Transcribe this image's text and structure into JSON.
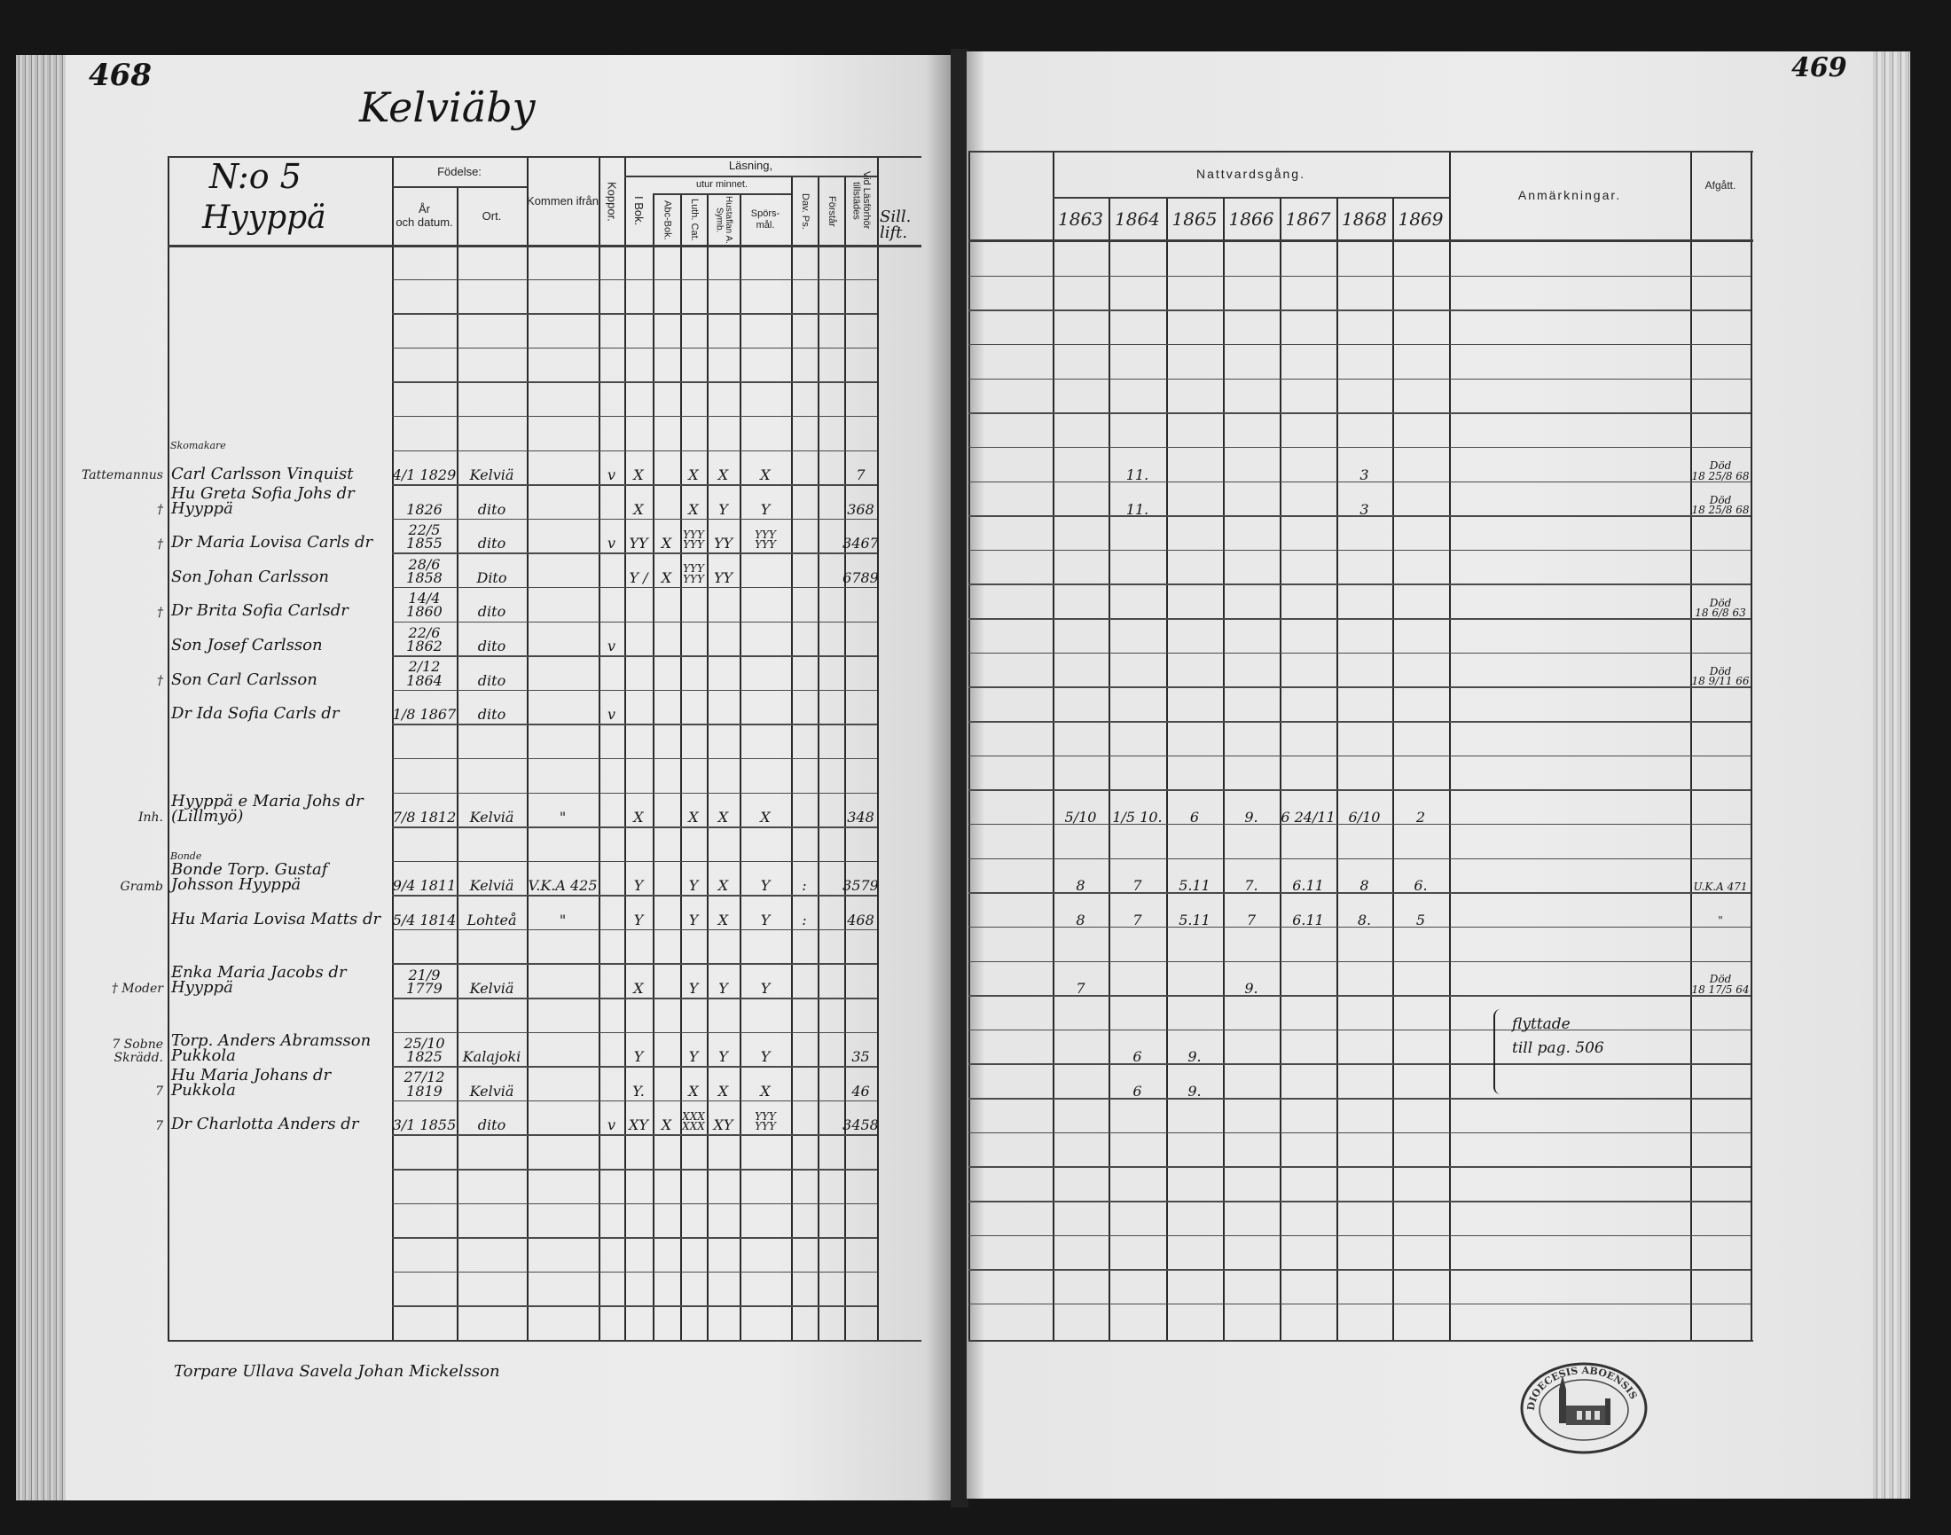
{
  "left_page": {
    "page_number": "468",
    "title": "Kelviäby",
    "household_no": "N:o 5",
    "farm_name": "Hyyppä",
    "header": {
      "fodelse": "Födelse:",
      "ar_datum": "År\noch datum.",
      "ort": "Ort.",
      "kommen_ifran": "Kommen ifrån",
      "koppor": "Koppor.",
      "lasning": "Läsning,",
      "utur_minnet": "utur minnet.",
      "i_bok": "I Bok.",
      "abc_bok": "Abc-Bok.",
      "luth_cat": "Luth. Cat.",
      "hustaflan": "Hustaflan A. Symb.",
      "sporsmal": "Spörs-\nmål.",
      "dav_ps": "Dav. Ps.",
      "forstar": "Förstår",
      "vid_lasforhor": "Vid Läsförhör tillstädes",
      "sill_lift": "Sill.\nlift."
    },
    "footer_note": "Torpare Ullava Savela Johan Mickelsson"
  },
  "right_page": {
    "page_number": "469",
    "header": {
      "nattvardsgang": "Nattvardsgång.",
      "years": [
        "1863",
        "1864",
        "1865",
        "1866",
        "1867",
        "1868",
        "1869"
      ],
      "anmarkningar": "Anmärkningar.",
      "afgatt": "Afgått."
    },
    "remark_bracket_text": "flyttade\ntill pag. 506",
    "stamp_text": "DIOECESIS ABOENSIS"
  },
  "rows": [
    {},
    {},
    {},
    {},
    {},
    {},
    {
      "margin": "Tattemannus",
      "above": "Skomakare",
      "name": "Carl Carlsson Vinquist",
      "date": "4/1 1829",
      "place": "Kelviä",
      "from": "",
      "koppor": "v",
      "i_bok": "X",
      "abc_bok": "",
      "luth_cat": "X",
      "hustaflan": "X",
      "sporsmal": "X",
      "dav_ps": "",
      "forstar": "",
      "vid": "7",
      "lift": "",
      "nattvard": [
        "",
        "11.",
        "",
        "",
        "",
        "3",
        ""
      ],
      "anm": "",
      "afgatt": "Död\n18 25/8 68"
    },
    {
      "margin": "†",
      "name": "Hu Greta Sofia Johs dr Hyyppä",
      "date": "1826",
      "place": "dito",
      "from": "",
      "koppor": "",
      "i_bok": "X",
      "abc_bok": "",
      "luth_cat": "X",
      "hustaflan": "Y",
      "sporsmal": "Y",
      "dav_ps": "",
      "forstar": "",
      "vid": "368",
      "lift": "",
      "nattvard": [
        "",
        "11.",
        "",
        "",
        "",
        "3",
        ""
      ],
      "anm": "",
      "afgatt": "Död\n18 25/8 68"
    },
    {
      "margin": "†",
      "name": "Dr Maria Lovisa Carls dr",
      "date": "22/5 1855",
      "place": "dito",
      "from": "",
      "koppor": "v",
      "i_bok": "YY",
      "abc_bok": "X",
      "luth_cat": "YYY\nYYY",
      "hustaflan": "YY",
      "sporsmal": "YYY\nYYY",
      "dav_ps": "",
      "forstar": "",
      "vid": "3467",
      "lift": "",
      "nattvard": [
        "",
        "",
        "",
        "",
        "",
        "",
        ""
      ],
      "anm": "",
      "afgatt": ""
    },
    {
      "margin": "",
      "name": "Son Johan Carlsson",
      "date": "28/6 1858",
      "place": "Dito",
      "from": "",
      "koppor": "",
      "i_bok": "Y /",
      "abc_bok": "X",
      "luth_cat": "YYY\nYYY",
      "hustaflan": "YY",
      "sporsmal": "",
      "dav_ps": "",
      "forstar": "",
      "vid": "6789",
      "lift": "",
      "nattvard": [
        "",
        "",
        "",
        "",
        "",
        "",
        ""
      ],
      "anm": "",
      "afgatt": ""
    },
    {
      "margin": "†",
      "name": "Dr Brita Sofia Carlsdr",
      "date": "14/4 1860",
      "place": "dito",
      "from": "",
      "koppor": "",
      "i_bok": "",
      "abc_bok": "",
      "luth_cat": "",
      "hustaflan": "",
      "sporsmal": "",
      "dav_ps": "",
      "forstar": "",
      "vid": "",
      "lift": "",
      "nattvard": [
        "",
        "",
        "",
        "",
        "",
        "",
        ""
      ],
      "anm": "",
      "afgatt": "Död\n18 6/8 63"
    },
    {
      "margin": "",
      "name": "Son Josef Carlsson",
      "date": "22/6 1862",
      "place": "dito",
      "from": "",
      "koppor": "v",
      "i_bok": "",
      "abc_bok": "",
      "luth_cat": "",
      "hustaflan": "",
      "sporsmal": "",
      "dav_ps": "",
      "forstar": "",
      "vid": "",
      "lift": "",
      "nattvard": [
        "",
        "",
        "",
        "",
        "",
        "",
        ""
      ],
      "anm": "",
      "afgatt": ""
    },
    {
      "margin": "†",
      "name": "Son Carl Carlsson",
      "date": "2/12 1864",
      "place": "dito",
      "from": "",
      "koppor": "",
      "i_bok": "",
      "abc_bok": "",
      "luth_cat": "",
      "hustaflan": "",
      "sporsmal": "",
      "dav_ps": "",
      "forstar": "",
      "vid": "",
      "lift": "",
      "nattvard": [
        "",
        "",
        "",
        "",
        "",
        "",
        ""
      ],
      "anm": "",
      "afgatt": "Död\n18 9/11 66"
    },
    {
      "margin": "",
      "name": "Dr Ida Sofia Carls dr",
      "date": "1/8 1867",
      "place": "dito",
      "from": "",
      "koppor": "v",
      "i_bok": "",
      "abc_bok": "",
      "luth_cat": "",
      "hustaflan": "",
      "sporsmal": "",
      "dav_ps": "",
      "forstar": "",
      "vid": "",
      "lift": "",
      "nattvard": [
        "",
        "",
        "",
        "",
        "",
        "",
        ""
      ],
      "anm": "",
      "afgatt": ""
    },
    {},
    {},
    {
      "margin": "Inh.",
      "name": "Hyyppä e Maria Johs dr (Lillmyö)",
      "date": "7/8 1812",
      "place": "Kelviä",
      "from": "\"",
      "koppor": "",
      "i_bok": "X",
      "abc_bok": "",
      "luth_cat": "X",
      "hustaflan": "X",
      "sporsmal": "X",
      "dav_ps": "",
      "forstar": "",
      "vid": "348",
      "lift": "",
      "nattvard": [
        "5/10",
        "1/5 10.",
        "6",
        "9.",
        "6 24/11",
        "6/10",
        "2"
      ],
      "anm": "",
      "afgatt": ""
    },
    {},
    {
      "margin": "Gramb",
      "above": "Bonde",
      "name": "Bonde Torp. Gustaf Johsson Hyyppä",
      "date": "9/4 1811",
      "place": "Kelviä",
      "from": "V.K.A 425",
      "koppor": "",
      "i_bok": "Y",
      "abc_bok": "",
      "luth_cat": "Y",
      "hustaflan": "X",
      "sporsmal": "Y",
      "dav_ps": ":",
      "forstar": "",
      "vid": "3579",
      "lift": "",
      "nattvard": [
        "8",
        "7",
        "5.11",
        "7.",
        "6.11",
        "8",
        "6."
      ],
      "anm": "",
      "afgatt": "U.K.A 471"
    },
    {
      "margin": "",
      "name": "Hu Maria Lovisa Matts dr",
      "date": "5/4 1814",
      "place": "Lohteå",
      "from": "\"",
      "koppor": "",
      "i_bok": "Y",
      "abc_bok": "",
      "luth_cat": "Y",
      "hustaflan": "X",
      "sporsmal": "Y",
      "dav_ps": ":",
      "forstar": "",
      "vid": "468",
      "lift": "",
      "nattvard": [
        "8",
        "7",
        "5.11",
        "7",
        "6.11",
        "8.",
        "5"
      ],
      "anm": "",
      "afgatt": "\""
    },
    {},
    {
      "margin": "† Moder",
      "name": "Enka Maria Jacobs dr Hyyppä",
      "date": "21/9 1779",
      "place": "Kelviä",
      "from": "",
      "koppor": "",
      "i_bok": "X",
      "abc_bok": "",
      "luth_cat": "Y",
      "hustaflan": "Y",
      "sporsmal": "Y",
      "dav_ps": "",
      "forstar": "",
      "vid": "",
      "lift": "",
      "nattvard": [
        "7",
        "",
        "",
        "9.",
        "",
        "",
        ""
      ],
      "anm": "",
      "afgatt": "Död\n18 17/5 64"
    },
    {},
    {
      "margin": "7 Sobne Skrädd.",
      "name": "Torp. Anders Abramsson Pukkola",
      "date": "25/10 1825",
      "place": "Kalajoki",
      "from": "",
      "koppor": "",
      "i_bok": "Y",
      "abc_bok": "",
      "luth_cat": "Y",
      "hustaflan": "Y",
      "sporsmal": "Y",
      "dav_ps": "",
      "forstar": "",
      "vid": "35",
      "lift": "",
      "nattvard": [
        "",
        "6",
        "9.",
        "",
        "",
        "",
        ""
      ],
      "anm": "",
      "afgatt": ""
    },
    {
      "margin": "7",
      "name": "Hu Maria Johans dr Pukkola",
      "date": "27/12 1819",
      "place": "Kelviä",
      "from": "",
      "koppor": "",
      "i_bok": "Y.",
      "abc_bok": "",
      "luth_cat": "X",
      "hustaflan": "X",
      "sporsmal": "X",
      "dav_ps": "",
      "forstar": "",
      "vid": "46",
      "lift": "",
      "nattvard": [
        "",
        "6",
        "9.",
        "",
        "",
        "",
        ""
      ],
      "anm": "",
      "afgatt": ""
    },
    {
      "margin": "7",
      "name": "Dr Charlotta Anders dr",
      "date": "3/1 1855",
      "place": "dito",
      "from": "",
      "koppor": "v",
      "i_bok": "XY",
      "abc_bok": "X",
      "luth_cat": "XXX\nXXX",
      "hustaflan": "XY",
      "sporsmal": "YYY\nYYY",
      "dav_ps": "",
      "forstar": "",
      "vid": "3458",
      "lift": "",
      "nattvard": [
        "",
        "",
        "",
        "",
        "",
        "",
        ""
      ],
      "anm": "",
      "afgatt": ""
    },
    {},
    {},
    {},
    {},
    {},
    {}
  ]
}
